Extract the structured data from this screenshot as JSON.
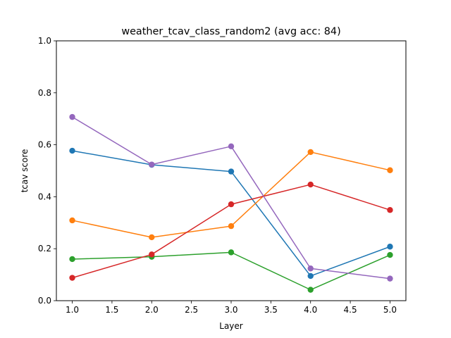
{
  "chart_data": {
    "type": "line",
    "title": "weather_tcav_class_random2 (avg acc: 84)",
    "xlabel": "Layer",
    "ylabel": "tcav score",
    "xlim": [
      0.8,
      5.2
    ],
    "ylim": [
      0.0,
      1.0
    ],
    "xticks": [
      1.0,
      1.5,
      2.0,
      2.5,
      3.0,
      3.5,
      4.0,
      4.5,
      5.0
    ],
    "xtick_labels": [
      "1.0",
      "1.5",
      "2.0",
      "2.5",
      "3.0",
      "3.5",
      "4.0",
      "4.5",
      "5.0"
    ],
    "yticks": [
      0.0,
      0.2,
      0.4,
      0.6,
      0.8,
      1.0
    ],
    "ytick_labels": [
      "0.0",
      "0.2",
      "0.4",
      "0.6",
      "0.8",
      "1.0"
    ],
    "grid": false,
    "legend": "none",
    "x": [
      1,
      2,
      3,
      4,
      5
    ],
    "series": [
      {
        "color": "#1f77b4",
        "values": [
          0.577,
          0.523,
          0.497,
          0.095,
          0.208
        ]
      },
      {
        "color": "#ff7f0e",
        "values": [
          0.309,
          0.244,
          0.287,
          0.572,
          0.502
        ]
      },
      {
        "color": "#2ca02c",
        "values": [
          0.16,
          0.169,
          0.186,
          0.042,
          0.176
        ]
      },
      {
        "color": "#d62728",
        "values": [
          0.088,
          0.178,
          0.371,
          0.447,
          0.349
        ]
      },
      {
        "color": "#9467bd",
        "values": [
          0.707,
          0.524,
          0.594,
          0.124,
          0.085
        ]
      }
    ]
  }
}
